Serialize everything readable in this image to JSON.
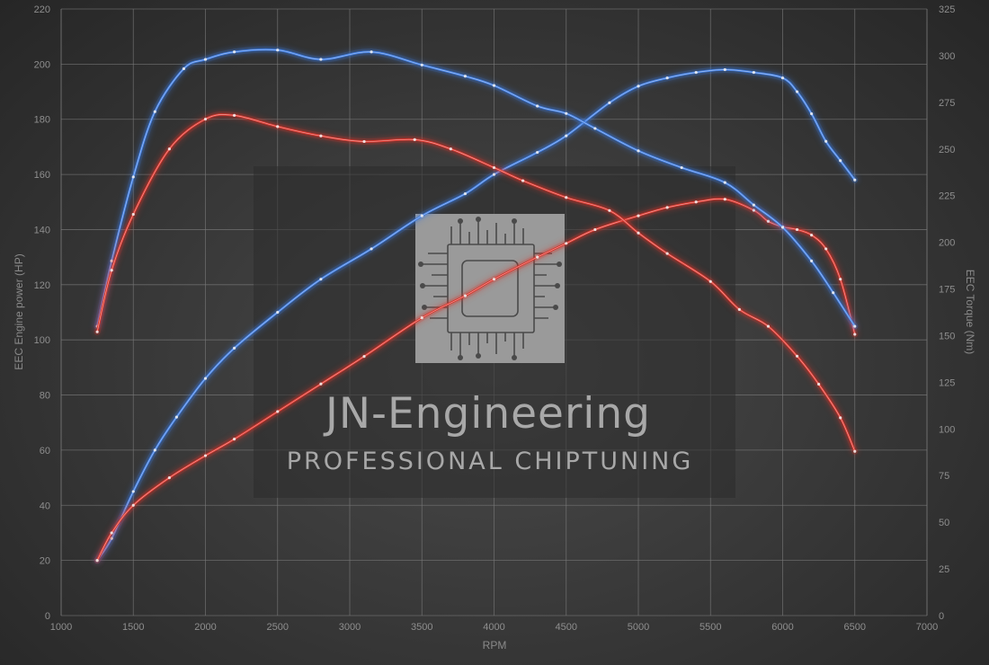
{
  "chart_data": {
    "type": "line",
    "title": "",
    "xlabel": "RPM",
    "ylabel_left": "EEC Engine power (HP)",
    "ylabel_right": "EEC Torque (Nm)",
    "xlim": [
      1000,
      7000
    ],
    "ylim_left": [
      0,
      220
    ],
    "ylim_right": [
      0,
      325
    ],
    "x_ticks": [
      1000,
      1500,
      2000,
      2500,
      3000,
      3500,
      4000,
      4500,
      5000,
      5500,
      6000,
      6500,
      7000
    ],
    "y_ticks_left": [
      0,
      20,
      40,
      60,
      80,
      100,
      120,
      140,
      160,
      180,
      200,
      220
    ],
    "y_ticks_right": [
      0,
      25,
      50,
      75,
      100,
      125,
      150,
      175,
      200,
      225,
      250,
      275,
      300,
      325
    ],
    "grid": true,
    "legend": "none",
    "series": [
      {
        "kind": "power",
        "axis": "left",
        "color": "#3d7be0",
        "x": [
          1250,
          1350,
          1500,
          1650,
          1800,
          2000,
          2200,
          2500,
          2800,
          3150,
          3500,
          3800,
          4000,
          4300,
          4500,
          4800,
          5000,
          5200,
          5400,
          5600,
          5800,
          6000,
          6100,
          6200,
          6300,
          6400,
          6500
        ],
        "y": [
          20,
          28,
          45,
          60,
          72,
          86,
          97,
          110,
          122,
          133,
          145,
          153,
          160,
          168,
          174,
          186,
          192,
          195,
          197,
          198,
          197,
          195,
          190,
          182,
          172,
          165,
          158
        ]
      },
      {
        "kind": "power",
        "axis": "left",
        "color": "#d9342b",
        "x": [
          1250,
          1350,
          1500,
          1750,
          2000,
          2200,
          2500,
          2800,
          3100,
          3500,
          3800,
          4000,
          4300,
          4500,
          4700,
          5000,
          5200,
          5400,
          5600,
          5800,
          5900,
          6000,
          6100,
          6200,
          6300,
          6400,
          6500
        ],
        "y": [
          20,
          30,
          40,
          50,
          58,
          64,
          74,
          84,
          94,
          108,
          116,
          122,
          130,
          135,
          140,
          145,
          148,
          150,
          151,
          147,
          143,
          141,
          140,
          138,
          133,
          122,
          102
        ]
      },
      {
        "kind": "torque",
        "axis": "right",
        "color": "#3d7be0",
        "x": [
          1250,
          1350,
          1500,
          1650,
          1850,
          2000,
          2200,
          2500,
          2800,
          3150,
          3500,
          3800,
          4000,
          4300,
          4500,
          4700,
          5000,
          5300,
          5600,
          5800,
          6000,
          6200,
          6350,
          6500
        ],
        "y": [
          155,
          190,
          235,
          270,
          293,
          298,
          302,
          303,
          298,
          302,
          295,
          289,
          284,
          273,
          269,
          261,
          249,
          240,
          232,
          220,
          208,
          190,
          173,
          155
        ]
      },
      {
        "kind": "torque",
        "axis": "right",
        "color": "#d9342b",
        "x": [
          1250,
          1350,
          1500,
          1750,
          2000,
          2200,
          2500,
          2800,
          3100,
          3450,
          3700,
          4000,
          4200,
          4500,
          4800,
          5000,
          5200,
          5500,
          5700,
          5900,
          6100,
          6250,
          6400,
          6500
        ],
        "y": [
          152,
          185,
          215,
          250,
          266,
          268,
          262,
          257,
          254,
          255,
          250,
          240,
          233,
          224,
          217,
          205,
          194,
          179,
          164,
          155,
          139,
          124,
          106,
          88
        ]
      }
    ]
  },
  "watermark": {
    "title": "JN-Engineering",
    "subtitle": "PROFESSIONAL CHIPTUNING"
  }
}
